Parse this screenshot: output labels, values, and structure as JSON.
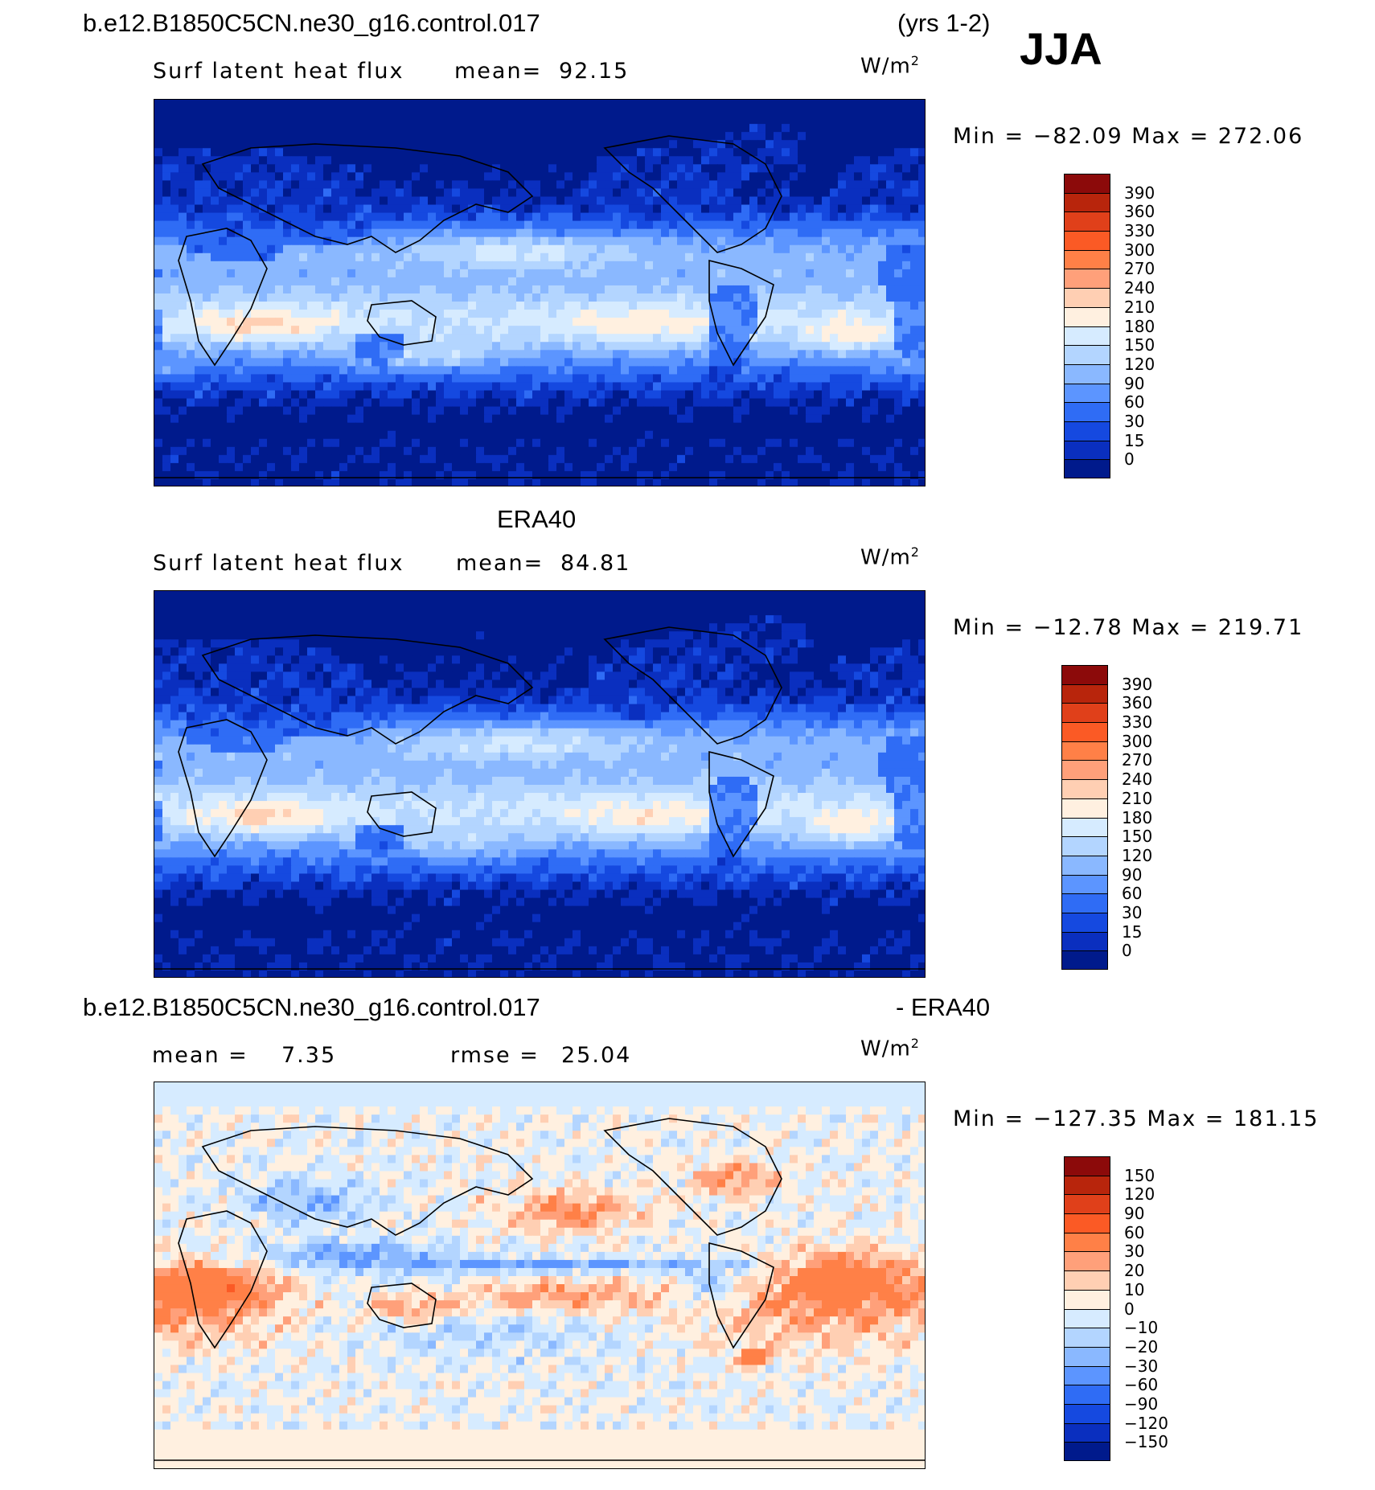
{
  "header": {
    "case_name": "b.e12.B1850C5CN.ne30_g16.control.017",
    "years": "(yrs 1-2)",
    "season": "JJA"
  },
  "panels": [
    {
      "title": "",
      "variable": "Surf latent heat flux",
      "stat1": "mean=",
      "stat1_value": "92.15",
      "stat2": "",
      "stat2_value": "",
      "units": "W/m",
      "units_sup": "2",
      "minmax": "Min = −82.09 Max = 272.06",
      "colorbar": {
        "labels": [
          "390",
          "360",
          "330",
          "300",
          "270",
          "240",
          "210",
          "180",
          "150",
          "120",
          "90",
          "60",
          "30",
          "15",
          "0"
        ],
        "colors": [
          "#8c0a0a",
          "#b8250c",
          "#e0401a",
          "#fb5a25",
          "#ff8047",
          "#ffa07a",
          "#ffcfb3",
          "#fff0e0",
          "#d6ebff",
          "#b3d5ff",
          "#8ab8ff",
          "#5c95ff",
          "#2f6cf5",
          "#1549e0",
          "#0a2fbf",
          "#001a8c"
        ]
      },
      "field": "latent_model"
    },
    {
      "title": "ERA40",
      "variable": "Surf latent heat flux",
      "stat1": "mean=",
      "stat1_value": "84.81",
      "stat2": "",
      "stat2_value": "",
      "units": "W/m",
      "units_sup": "2",
      "minmax": "Min = −12.78 Max = 219.71",
      "colorbar": {
        "labels": [
          "390",
          "360",
          "330",
          "300",
          "270",
          "240",
          "210",
          "180",
          "150",
          "120",
          "90",
          "60",
          "30",
          "15",
          "0"
        ],
        "colors": [
          "#8c0a0a",
          "#b8250c",
          "#e0401a",
          "#fb5a25",
          "#ff8047",
          "#ffa07a",
          "#ffcfb3",
          "#fff0e0",
          "#d6ebff",
          "#b3d5ff",
          "#8ab8ff",
          "#5c95ff",
          "#2f6cf5",
          "#1549e0",
          "#0a2fbf",
          "#001a8c"
        ]
      },
      "field": "latent_obs"
    },
    {
      "title": "b.e12.B1850C5CN.ne30_g16.control.017",
      "title_right": "- ERA40",
      "variable": "",
      "stat1": "mean =",
      "stat1_value": "7.35",
      "stat2": "rmse =",
      "stat2_value": "25.04",
      "units": "W/m",
      "units_sup": "2",
      "minmax": "Min = −127.35 Max = 181.15",
      "colorbar": {
        "labels": [
          "150",
          "120",
          "90",
          "60",
          "30",
          "20",
          "10",
          "0",
          "−10",
          "−20",
          "−30",
          "−60",
          "−90",
          "−120",
          "−150"
        ],
        "colors": [
          "#8c0a0a",
          "#b8250c",
          "#e0401a",
          "#fb5a25",
          "#ff8047",
          "#ffa07a",
          "#ffcfb3",
          "#fff0e0",
          "#d6ebff",
          "#b3d5ff",
          "#8ab8ff",
          "#5c95ff",
          "#2f6cf5",
          "#1549e0",
          "#0a2fbf",
          "#001a8c"
        ]
      },
      "field": "diff"
    }
  ]
}
